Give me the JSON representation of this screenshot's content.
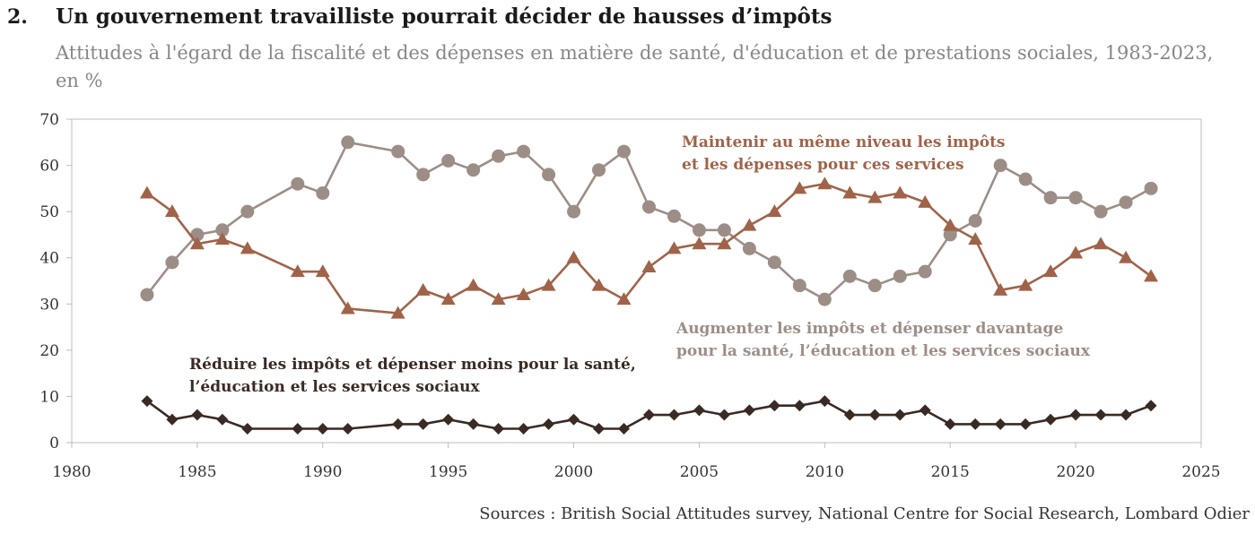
{
  "header": {
    "number": "2.",
    "title": "Un gouvernement travailliste pourrait décider de hausses d’impôts",
    "subtitle": "Attitudes à l'égard de la fiscalité et des dépenses en matière de santé, d'éducation et de prestations sociales, 1983-2023, en %"
  },
  "source": "Sources : British Social Attitudes survey, National Centre for Social Research, Lombard Odier",
  "chart_data": {
    "type": "line",
    "title": "Attitudes à l'égard de la fiscalité et des dépenses en matière de santé, d'éducation et de prestations sociales, 1983-2023, en %",
    "xlabel": "",
    "ylabel": "",
    "xlim": [
      1980,
      2025
    ],
    "ylim": [
      0,
      70
    ],
    "x_ticks": [
      1980,
      1985,
      1990,
      1995,
      2000,
      2005,
      2010,
      2015,
      2020,
      2025
    ],
    "y_ticks": [
      0,
      10,
      20,
      30,
      40,
      50,
      60,
      70
    ],
    "grid": false,
    "legend": "none (direct labels)",
    "series": [
      {
        "name": "Augmenter les impôts et dépenser davantage pour la santé, l’éducation et les services sociaux",
        "label_lines": [
          "Augmenter les impôts et dépenser davantage",
          "pour la santé, l’éducation et les services sociaux"
        ],
        "color": "#9c8e87",
        "marker": "circle",
        "points": [
          [
            1983,
            32
          ],
          [
            1984,
            39
          ],
          [
            1985,
            45
          ],
          [
            1986,
            46
          ],
          [
            1987,
            50
          ],
          [
            1989,
            56
          ],
          [
            1990,
            54
          ],
          [
            1991,
            65
          ],
          [
            1993,
            63
          ],
          [
            1994,
            58
          ],
          [
            1995,
            61
          ],
          [
            1996,
            59
          ],
          [
            1997,
            62
          ],
          [
            1998,
            63
          ],
          [
            1999,
            58
          ],
          [
            2000,
            50
          ],
          [
            2001,
            59
          ],
          [
            2002,
            63
          ],
          [
            2003,
            51
          ],
          [
            2004,
            49
          ],
          [
            2005,
            46
          ],
          [
            2006,
            46
          ],
          [
            2007,
            42
          ],
          [
            2008,
            39
          ],
          [
            2009,
            34
          ],
          [
            2010,
            31
          ],
          [
            2011,
            36
          ],
          [
            2012,
            34
          ],
          [
            2013,
            36
          ],
          [
            2014,
            37
          ],
          [
            2015,
            45
          ],
          [
            2016,
            48
          ],
          [
            2017,
            60
          ],
          [
            2018,
            57
          ],
          [
            2019,
            53
          ],
          [
            2020,
            53
          ],
          [
            2021,
            50
          ],
          [
            2022,
            52
          ],
          [
            2023,
            55
          ]
        ]
      },
      {
        "name": "Maintenir au même niveau les impôts et les dépenses pour ces services",
        "label_lines": [
          "Maintenir au même niveau les impôts",
          "et les dépenses pour ces services"
        ],
        "color": "#a0634a",
        "marker": "triangle",
        "points": [
          [
            1983,
            54
          ],
          [
            1984,
            50
          ],
          [
            1985,
            43
          ],
          [
            1986,
            44
          ],
          [
            1987,
            42
          ],
          [
            1989,
            37
          ],
          [
            1990,
            37
          ],
          [
            1991,
            29
          ],
          [
            1993,
            28
          ],
          [
            1994,
            33
          ],
          [
            1995,
            31
          ],
          [
            1996,
            34
          ],
          [
            1997,
            31
          ],
          [
            1998,
            32
          ],
          [
            1999,
            34
          ],
          [
            2000,
            40
          ],
          [
            2001,
            34
          ],
          [
            2002,
            31
          ],
          [
            2003,
            38
          ],
          [
            2004,
            42
          ],
          [
            2005,
            43
          ],
          [
            2006,
            43
          ],
          [
            2007,
            47
          ],
          [
            2008,
            50
          ],
          [
            2009,
            55
          ],
          [
            2010,
            56
          ],
          [
            2011,
            54
          ],
          [
            2012,
            53
          ],
          [
            2013,
            54
          ],
          [
            2014,
            52
          ],
          [
            2015,
            47
          ],
          [
            2016,
            44
          ],
          [
            2017,
            33
          ],
          [
            2018,
            34
          ],
          [
            2019,
            37
          ],
          [
            2020,
            41
          ],
          [
            2021,
            43
          ],
          [
            2022,
            40
          ],
          [
            2023,
            36
          ]
        ]
      },
      {
        "name": "Réduire les impôts et dépenser moins pour la santé, l’éducation et les services sociaux",
        "label_lines": [
          "Réduire les impôts et dépenser moins pour la santé,",
          "l’éducation et les services sociaux"
        ],
        "color": "#3a2a24",
        "marker": "diamond",
        "points": [
          [
            1983,
            9
          ],
          [
            1984,
            5
          ],
          [
            1985,
            6
          ],
          [
            1986,
            5
          ],
          [
            1987,
            3
          ],
          [
            1989,
            3
          ],
          [
            1990,
            3
          ],
          [
            1991,
            3
          ],
          [
            1993,
            4
          ],
          [
            1994,
            4
          ],
          [
            1995,
            5
          ],
          [
            1996,
            4
          ],
          [
            1997,
            3
          ],
          [
            1998,
            3
          ],
          [
            1999,
            4
          ],
          [
            2000,
            5
          ],
          [
            2001,
            3
          ],
          [
            2002,
            3
          ],
          [
            2003,
            6
          ],
          [
            2004,
            6
          ],
          [
            2005,
            7
          ],
          [
            2006,
            6
          ],
          [
            2007,
            7
          ],
          [
            2008,
            8
          ],
          [
            2009,
            8
          ],
          [
            2010,
            9
          ],
          [
            2011,
            6
          ],
          [
            2012,
            6
          ],
          [
            2013,
            6
          ],
          [
            2014,
            7
          ],
          [
            2015,
            4
          ],
          [
            2016,
            4
          ],
          [
            2017,
            4
          ],
          [
            2018,
            4
          ],
          [
            2019,
            5
          ],
          [
            2020,
            6
          ],
          [
            2021,
            6
          ],
          [
            2022,
            6
          ],
          [
            2023,
            8
          ]
        ]
      }
    ]
  }
}
